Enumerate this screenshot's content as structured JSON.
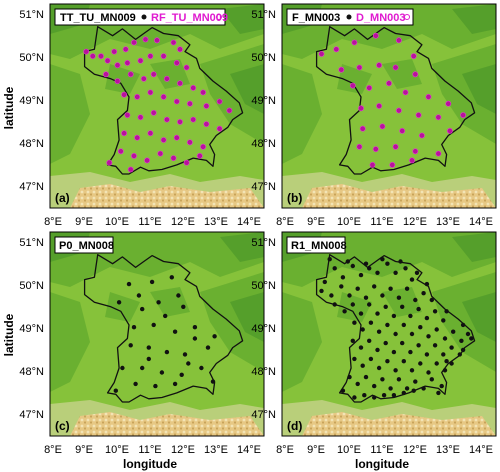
{
  "figure": {
    "x_axis_label": "longitude",
    "y_axis_label": "latitude",
    "lon_ticks": [
      "8°E",
      "9°E",
      "10°E",
      "11°E",
      "12°E",
      "13°E",
      "14°E"
    ],
    "lat_ticks": [
      "51°N",
      "50°N",
      "49°N",
      "48°N",
      "47°N"
    ],
    "lon_range": [
      8,
      14.5
    ],
    "lat_range": [
      46.6,
      51.1
    ]
  },
  "colors": {
    "dot_black": "#111111",
    "dot_magenta": "#b8129c",
    "ring_magenta": "#e23bd0",
    "legend_magenta": "#e01bd0",
    "border": "#111111",
    "lowland": "#86c23a",
    "hills": "#65ad2f",
    "mountains": "#d8b86a"
  },
  "panels": [
    {
      "label": "(a)",
      "legend": [
        {
          "text": "TT_TU_MN009",
          "symbol": "filled-dot",
          "color": "black"
        },
        {
          "text": "RF_TU_MN009",
          "symbol": "open-dot",
          "color": "magenta"
        }
      ],
      "style": "magenta"
    },
    {
      "label": "(b)",
      "legend": [
        {
          "text": "F_MN003",
          "symbol": "filled-dot",
          "color": "black"
        },
        {
          "text": "D_MN003",
          "symbol": "open-dot",
          "color": "magenta"
        }
      ],
      "style": "magenta"
    },
    {
      "label": "(c)",
      "legend": [
        {
          "text": "P0_MN008",
          "symbol": "none",
          "color": "black"
        }
      ],
      "style": "black"
    },
    {
      "label": "(d)",
      "legend": [
        {
          "text": "R1_MN008",
          "symbol": "none",
          "color": "black"
        }
      ],
      "style": "black"
    }
  ],
  "chart_data": {
    "type": "scatter",
    "x_label": "longitude",
    "y_label": "latitude",
    "xlim": [
      8,
      14.5
    ],
    "ylim": [
      46.6,
      51.1
    ],
    "border_lonlat": [
      [
        9.45,
        50.6
      ],
      [
        9.9,
        50.4
      ],
      [
        10.2,
        50.55
      ],
      [
        10.6,
        50.32
      ],
      [
        10.85,
        50.45
      ],
      [
        11.1,
        50.58
      ],
      [
        11.45,
        50.45
      ],
      [
        11.9,
        50.4
      ],
      [
        12.25,
        50.2
      ],
      [
        12.1,
        50.05
      ],
      [
        12.45,
        49.9
      ],
      [
        12.55,
        49.68
      ],
      [
        12.95,
        49.4
      ],
      [
        13.35,
        49.18
      ],
      [
        13.75,
        48.92
      ],
      [
        13.85,
        48.7
      ],
      [
        13.55,
        48.55
      ],
      [
        13.4,
        48.38
      ],
      [
        13.05,
        48.2
      ],
      [
        12.85,
        48.0
      ],
      [
        13.0,
        47.78
      ],
      [
        12.95,
        47.52
      ],
      [
        12.75,
        47.65
      ],
      [
        12.35,
        47.7
      ],
      [
        11.85,
        47.55
      ],
      [
        11.4,
        47.45
      ],
      [
        11.0,
        47.42
      ],
      [
        10.75,
        47.5
      ],
      [
        10.4,
        47.35
      ],
      [
        10.2,
        47.35
      ],
      [
        10.0,
        47.52
      ],
      [
        9.75,
        47.55
      ],
      [
        9.95,
        47.78
      ],
      [
        10.1,
        48.1
      ],
      [
        10.05,
        48.55
      ],
      [
        10.35,
        48.75
      ],
      [
        10.4,
        49.05
      ],
      [
        10.15,
        49.35
      ],
      [
        9.85,
        49.45
      ],
      [
        9.35,
        49.55
      ],
      [
        9.05,
        49.72
      ],
      [
        9.05,
        50.05
      ],
      [
        9.35,
        50.1
      ],
      [
        9.45,
        50.6
      ]
    ],
    "series": [
      {
        "panel": "(a)",
        "points": [
          [
            9.1,
            50.05
          ],
          [
            9.3,
            49.95
          ],
          [
            9.55,
            49.95
          ],
          [
            9.75,
            49.85
          ],
          [
            9.95,
            50.05
          ],
          [
            10.3,
            50.1
          ],
          [
            10.55,
            50.25
          ],
          [
            10.9,
            50.32
          ],
          [
            11.25,
            50.3
          ],
          [
            11.75,
            50.25
          ],
          [
            11.95,
            50.1
          ],
          [
            10.05,
            49.75
          ],
          [
            10.35,
            49.8
          ],
          [
            10.75,
            49.85
          ],
          [
            11.05,
            49.95
          ],
          [
            11.45,
            49.95
          ],
          [
            11.85,
            49.8
          ],
          [
            12.15,
            49.7
          ],
          [
            9.7,
            49.55
          ],
          [
            10.05,
            49.4
          ],
          [
            10.45,
            49.55
          ],
          [
            10.85,
            49.45
          ],
          [
            11.15,
            49.55
          ],
          [
            11.55,
            49.45
          ],
          [
            11.95,
            49.35
          ],
          [
            12.35,
            49.25
          ],
          [
            12.65,
            49.15
          ],
          [
            10.25,
            49.1
          ],
          [
            10.65,
            49.05
          ],
          [
            11.05,
            49.15
          ],
          [
            11.45,
            49.05
          ],
          [
            11.85,
            48.95
          ],
          [
            12.25,
            48.9
          ],
          [
            12.75,
            48.85
          ],
          [
            13.15,
            48.95
          ],
          [
            13.45,
            48.75
          ],
          [
            10.35,
            48.65
          ],
          [
            10.75,
            48.6
          ],
          [
            11.15,
            48.7
          ],
          [
            11.55,
            48.55
          ],
          [
            11.95,
            48.5
          ],
          [
            12.35,
            48.55
          ],
          [
            12.75,
            48.45
          ],
          [
            13.15,
            48.35
          ],
          [
            10.25,
            48.25
          ],
          [
            10.65,
            48.15
          ],
          [
            11.05,
            48.25
          ],
          [
            11.45,
            48.1
          ],
          [
            11.85,
            48.15
          ],
          [
            12.25,
            48.05
          ],
          [
            12.65,
            47.95
          ],
          [
            10.15,
            47.85
          ],
          [
            10.55,
            47.75
          ],
          [
            10.95,
            47.65
          ],
          [
            11.35,
            47.8
          ],
          [
            11.75,
            47.7
          ],
          [
            12.15,
            47.6
          ],
          [
            12.55,
            47.75
          ],
          [
            10.45,
            47.45
          ],
          [
            9.8,
            47.6
          ]
        ]
      },
      {
        "panel": "(b)",
        "points": [
          [
            9.2,
            50.0
          ],
          [
            9.65,
            50.1
          ],
          [
            10.2,
            50.25
          ],
          [
            10.85,
            50.4
          ],
          [
            11.55,
            50.3
          ],
          [
            12.0,
            49.95
          ],
          [
            9.8,
            49.65
          ],
          [
            10.35,
            49.7
          ],
          [
            10.95,
            49.75
          ],
          [
            11.45,
            49.7
          ],
          [
            12.05,
            49.55
          ],
          [
            10.15,
            49.3
          ],
          [
            10.65,
            49.25
          ],
          [
            11.25,
            49.35
          ],
          [
            11.75,
            49.15
          ],
          [
            12.45,
            49.05
          ],
          [
            13.05,
            48.9
          ],
          [
            13.5,
            48.65
          ],
          [
            10.4,
            48.8
          ],
          [
            10.95,
            48.85
          ],
          [
            11.55,
            48.75
          ],
          [
            12.15,
            48.65
          ],
          [
            12.75,
            48.6
          ],
          [
            10.45,
            48.35
          ],
          [
            11.05,
            48.4
          ],
          [
            11.65,
            48.3
          ],
          [
            12.25,
            48.2
          ],
          [
            13.1,
            48.3
          ],
          [
            10.35,
            47.95
          ],
          [
            10.85,
            47.9
          ],
          [
            11.45,
            47.95
          ],
          [
            12.05,
            47.85
          ],
          [
            12.75,
            47.8
          ],
          [
            10.75,
            47.55
          ],
          [
            11.35,
            47.55
          ],
          [
            11.95,
            47.65
          ]
        ]
      },
      {
        "panel": "(c)",
        "points": [
          [
            10.4,
            49.95
          ],
          [
            11.1,
            50.0
          ],
          [
            11.7,
            50.1
          ],
          [
            10.1,
            49.55
          ],
          [
            10.8,
            49.4
          ],
          [
            11.3,
            49.55
          ],
          [
            12.05,
            49.45
          ],
          [
            10.55,
            49.0
          ],
          [
            11.15,
            49.05
          ],
          [
            11.8,
            48.9
          ],
          [
            12.4,
            49.0
          ],
          [
            13.0,
            48.8
          ],
          [
            10.45,
            48.6
          ],
          [
            11.0,
            48.55
          ],
          [
            11.55,
            48.45
          ],
          [
            12.1,
            48.4
          ],
          [
            12.8,
            48.55
          ],
          [
            10.2,
            48.1
          ],
          [
            10.8,
            48.1
          ],
          [
            11.4,
            48.0
          ],
          [
            12.0,
            47.95
          ],
          [
            12.6,
            48.1
          ],
          [
            10.6,
            47.75
          ],
          [
            11.2,
            47.7
          ],
          [
            11.8,
            47.75
          ],
          [
            10.0,
            47.6
          ],
          [
            12.95,
            47.8
          ],
          [
            11.5,
            49.25
          ],
          [
            12.4,
            48.75
          ],
          [
            10.7,
            49.7
          ],
          [
            11.9,
            49.7
          ],
          [
            11.0,
            48.3
          ],
          [
            12.2,
            48.2
          ]
        ]
      },
      {
        "panel": "(d)",
        "points": [
          [
            9.3,
            50.0
          ],
          [
            9.6,
            50.3
          ],
          [
            9.85,
            50.1
          ],
          [
            10.15,
            50.35
          ],
          [
            10.4,
            50.15
          ],
          [
            10.65,
            50.3
          ],
          [
            10.9,
            50.2
          ],
          [
            11.2,
            50.4
          ],
          [
            11.45,
            50.2
          ],
          [
            11.75,
            50.3
          ],
          [
            11.95,
            50.05
          ],
          [
            9.2,
            49.8
          ],
          [
            9.5,
            49.7
          ],
          [
            9.8,
            49.9
          ],
          [
            10.05,
            49.7
          ],
          [
            10.3,
            49.85
          ],
          [
            10.55,
            49.65
          ],
          [
            10.8,
            49.9
          ],
          [
            11.05,
            49.7
          ],
          [
            11.3,
            49.85
          ],
          [
            11.55,
            49.65
          ],
          [
            11.8,
            49.85
          ],
          [
            12.05,
            49.6
          ],
          [
            12.3,
            49.75
          ],
          [
            9.6,
            49.5
          ],
          [
            9.9,
            49.35
          ],
          [
            10.15,
            49.5
          ],
          [
            10.4,
            49.3
          ],
          [
            10.65,
            49.5
          ],
          [
            10.9,
            49.3
          ],
          [
            11.15,
            49.45
          ],
          [
            11.4,
            49.25
          ],
          [
            11.65,
            49.45
          ],
          [
            11.9,
            49.25
          ],
          [
            12.15,
            49.4
          ],
          [
            12.4,
            49.2
          ],
          [
            12.65,
            49.35
          ],
          [
            12.9,
            49.15
          ],
          [
            10.2,
            49.1
          ],
          [
            10.45,
            48.95
          ],
          [
            10.7,
            49.1
          ],
          [
            10.95,
            48.9
          ],
          [
            11.2,
            49.05
          ],
          [
            11.45,
            48.85
          ],
          [
            11.7,
            49.05
          ],
          [
            11.95,
            48.85
          ],
          [
            12.2,
            49.0
          ],
          [
            12.45,
            48.8
          ],
          [
            12.7,
            48.95
          ],
          [
            12.95,
            48.75
          ],
          [
            13.2,
            48.9
          ],
          [
            13.45,
            48.7
          ],
          [
            13.65,
            48.85
          ],
          [
            10.15,
            48.7
          ],
          [
            10.4,
            48.55
          ],
          [
            10.65,
            48.7
          ],
          [
            10.9,
            48.5
          ],
          [
            11.15,
            48.65
          ],
          [
            11.4,
            48.45
          ],
          [
            11.65,
            48.65
          ],
          [
            11.9,
            48.45
          ],
          [
            12.15,
            48.6
          ],
          [
            12.4,
            48.4
          ],
          [
            12.65,
            48.6
          ],
          [
            12.9,
            48.4
          ],
          [
            13.15,
            48.55
          ],
          [
            13.4,
            48.4
          ],
          [
            10.2,
            48.3
          ],
          [
            10.45,
            48.15
          ],
          [
            10.7,
            48.3
          ],
          [
            10.95,
            48.1
          ],
          [
            11.2,
            48.25
          ],
          [
            11.45,
            48.05
          ],
          [
            11.7,
            48.25
          ],
          [
            11.95,
            48.05
          ],
          [
            12.2,
            48.2
          ],
          [
            12.45,
            48.0
          ],
          [
            12.7,
            48.2
          ],
          [
            12.95,
            48.05
          ],
          [
            13.15,
            48.2
          ],
          [
            10.05,
            47.9
          ],
          [
            10.3,
            47.75
          ],
          [
            10.55,
            47.9
          ],
          [
            10.8,
            47.7
          ],
          [
            11.05,
            47.85
          ],
          [
            11.3,
            47.65
          ],
          [
            11.55,
            47.85
          ],
          [
            11.8,
            47.65
          ],
          [
            12.05,
            47.8
          ],
          [
            12.3,
            47.65
          ],
          [
            12.55,
            47.85
          ],
          [
            12.85,
            47.7
          ],
          [
            9.85,
            47.6
          ],
          [
            10.2,
            47.45
          ],
          [
            10.5,
            47.5
          ],
          [
            10.8,
            47.45
          ],
          [
            11.1,
            47.5
          ],
          [
            11.4,
            47.5
          ],
          [
            11.7,
            47.55
          ],
          [
            12.0,
            47.6
          ],
          [
            12.75,
            47.55
          ],
          [
            9.45,
            50.5
          ],
          [
            10.0,
            50.45
          ],
          [
            10.55,
            50.4
          ],
          [
            11.05,
            50.5
          ],
          [
            11.6,
            50.45
          ],
          [
            12.1,
            50.2
          ],
          [
            12.4,
            49.95
          ],
          [
            12.55,
            49.6
          ],
          [
            13.0,
            49.35
          ],
          [
            13.5,
            49.05
          ],
          [
            13.75,
            48.75
          ],
          [
            13.5,
            48.5
          ],
          [
            13.0,
            48.25
          ]
        ]
      }
    ]
  }
}
